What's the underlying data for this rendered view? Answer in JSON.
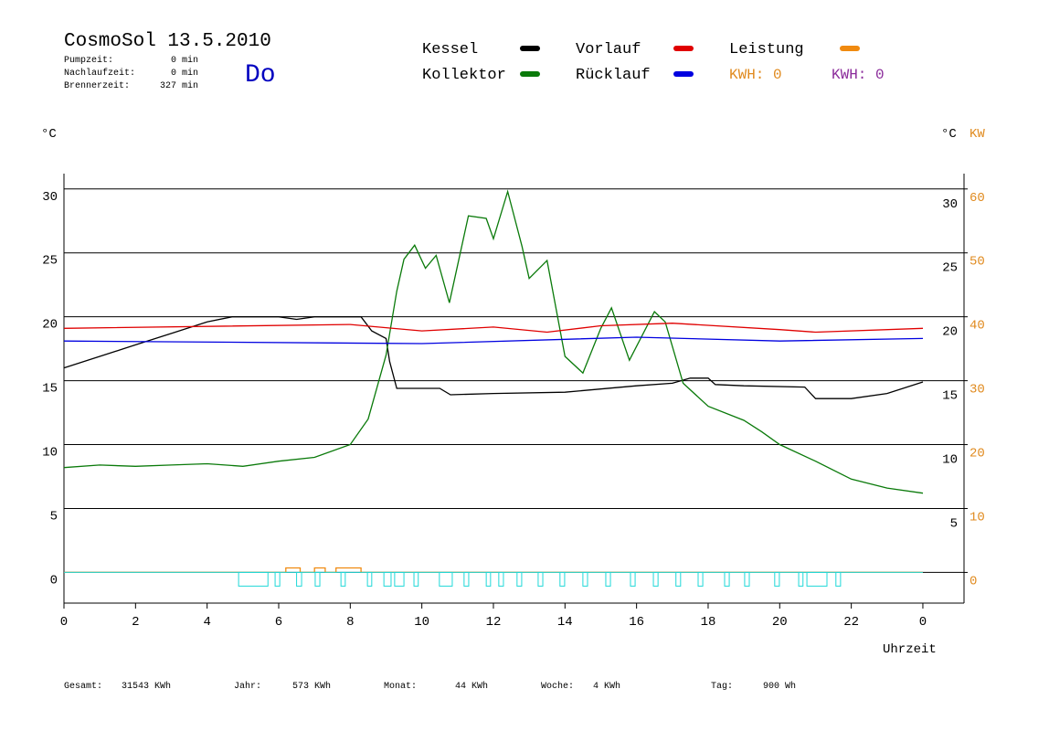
{
  "header": {
    "title": "CosmoSol 13.5.2010",
    "day": "Do",
    "stats": [
      {
        "label": "Pumpzeit:",
        "value": "0 min"
      },
      {
        "label": "Nachlaufzeit:",
        "value": "0 min"
      },
      {
        "label": "Brennerzeit:",
        "value": "327 min"
      }
    ]
  },
  "footer": [
    {
      "label": "Gesamt:",
      "value": "31543 KWh"
    },
    {
      "label": "Jahr:",
      "value": "573 KWh"
    },
    {
      "label": "Monat:",
      "value": "44 KWh"
    },
    {
      "label": "Woche:",
      "value": "4 KWh"
    },
    {
      "label": "Tag:",
      "value": "900 Wh"
    }
  ],
  "chart_data": {
    "type": "line",
    "ylabel": "°C",
    "y2label_c": "°C",
    "y2label": "KW",
    "xlabel": "Uhrzeit",
    "kwh_labels": [
      {
        "text": "KWH: 0",
        "color": "#e08a1e"
      },
      {
        "text": "KWH: 0",
        "color": "#8a2a9a"
      }
    ],
    "xlim": [
      0,
      25.15
    ],
    "xticks": [
      0,
      2,
      4,
      6,
      8,
      10,
      12,
      14,
      16,
      18,
      20,
      22,
      {
        "value": 24,
        "label": "0"
      }
    ],
    "ylim": [
      -2.4,
      31.2
    ],
    "yticks": [
      0,
      5,
      10,
      15,
      20,
      25,
      30
    ],
    "y2lim": [
      -4.8,
      62.4
    ],
    "y2ticks": [
      0,
      10,
      20,
      30,
      40,
      50,
      60
    ],
    "grid": true,
    "series": [
      {
        "name": "Kessel",
        "color": "#000000",
        "x": [
          0,
          1,
          2,
          3,
          4,
          4.7,
          6,
          6.5,
          7,
          8,
          8.3,
          8.6,
          9,
          9.1,
          9.3,
          10,
          10.5,
          10.8,
          12,
          14,
          16,
          17,
          17.5,
          18,
          18.2,
          19,
          20.7,
          21,
          22,
          23,
          24
        ],
        "values": [
          16.0,
          16.9,
          17.8,
          18.7,
          19.6,
          20.0,
          20.0,
          19.8,
          20.0,
          20.0,
          20.0,
          18.9,
          18.3,
          16.5,
          14.4,
          14.4,
          14.4,
          13.9,
          14.0,
          14.1,
          14.6,
          14.8,
          15.2,
          15.2,
          14.7,
          14.6,
          14.5,
          13.6,
          13.6,
          14.0,
          14.9
        ]
      },
      {
        "name": "Kollektor",
        "color": "#0a7a0a",
        "x": [
          0,
          1,
          2,
          3,
          4,
          5,
          6,
          7,
          8,
          8.5,
          9,
          9.3,
          9.5,
          9.8,
          10.1,
          10.4,
          10.77,
          11.3,
          11.8,
          12.0,
          12.4,
          12.8,
          13.0,
          13.5,
          14,
          14.5,
          15,
          15.3,
          15.8,
          16.5,
          16.8,
          17.3,
          18,
          19,
          19.5,
          20,
          21,
          22,
          23,
          24
        ],
        "values": [
          8.2,
          8.4,
          8.3,
          8.4,
          8.5,
          8.3,
          8.7,
          9.0,
          10.0,
          12.0,
          17.0,
          22.0,
          24.5,
          25.6,
          23.8,
          24.8,
          21.1,
          27.9,
          27.7,
          26.1,
          29.8,
          25.5,
          23.0,
          24.4,
          16.9,
          15.6,
          19.1,
          20.7,
          16.6,
          20.4,
          19.6,
          14.8,
          13.0,
          11.9,
          11.0,
          10.0,
          8.7,
          7.3,
          6.6,
          6.2
        ]
      },
      {
        "name": "Vorlauf",
        "color": "#e00000",
        "x": [
          0,
          8,
          10,
          12,
          13.5,
          15,
          17,
          20,
          21,
          24
        ],
        "values": [
          19.1,
          19.4,
          18.9,
          19.2,
          18.8,
          19.3,
          19.5,
          19.0,
          18.8,
          19.1
        ]
      },
      {
        "name": "Rücklauf",
        "color": "#0000e0",
        "x": [
          0,
          10,
          16,
          20,
          24
        ],
        "values": [
          18.1,
          17.9,
          18.4,
          18.1,
          18.3
        ]
      },
      {
        "name": "Leistung",
        "color": "#f08a10",
        "axis": "y2",
        "x": [
          0,
          6.2,
          6.2,
          6.6,
          6.6,
          7.0,
          7.0,
          7.3,
          7.3,
          7.6,
          7.6,
          8.3,
          8.3,
          24
        ],
        "values": [
          0,
          0,
          0.7,
          0.7,
          0,
          0,
          0.7,
          0.7,
          0,
          0,
          0.7,
          0.7,
          0,
          0
        ]
      }
    ],
    "pump": {
      "color": "#20d8d8",
      "value": -1.07,
      "intervals": [
        [
          4.88,
          5.7
        ],
        [
          5.9,
          6.03
        ],
        [
          6.5,
          6.64
        ],
        [
          7.02,
          7.15
        ],
        [
          7.74,
          7.86
        ],
        [
          8.48,
          8.6
        ],
        [
          8.94,
          9.14
        ],
        [
          9.24,
          9.5
        ],
        [
          9.78,
          9.9
        ],
        [
          10.49,
          10.85
        ],
        [
          11.18,
          11.31
        ],
        [
          11.8,
          11.92
        ],
        [
          12.15,
          12.28
        ],
        [
          12.66,
          12.79
        ],
        [
          13.25,
          13.38
        ],
        [
          13.86,
          13.99
        ],
        [
          14.5,
          14.63
        ],
        [
          15.14,
          15.27
        ],
        [
          15.83,
          15.96
        ],
        [
          16.47,
          16.6
        ],
        [
          17.1,
          17.23
        ],
        [
          17.72,
          17.85
        ],
        [
          18.46,
          18.59
        ],
        [
          19.02,
          19.15
        ],
        [
          19.86,
          19.99
        ],
        [
          20.53,
          20.65
        ],
        [
          20.76,
          21.32
        ],
        [
          21.57,
          21.7
        ]
      ]
    }
  }
}
